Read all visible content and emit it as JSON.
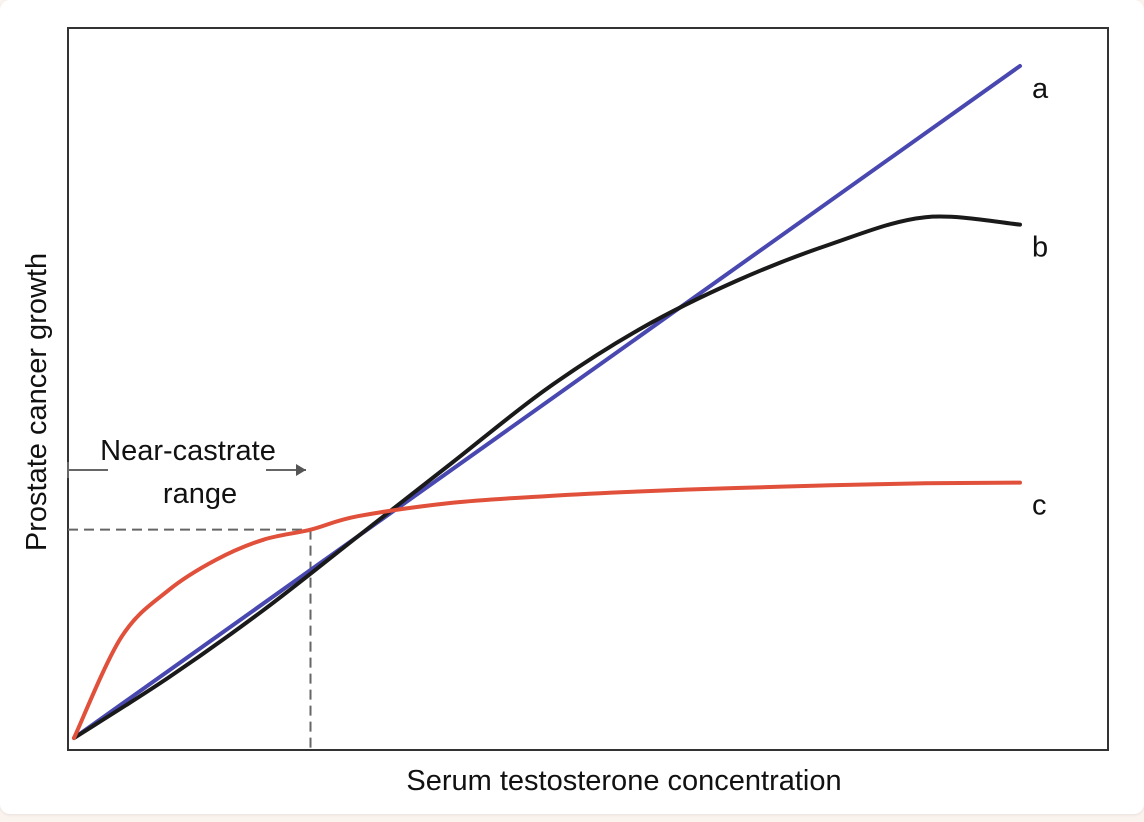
{
  "chart_data": {
    "type": "line",
    "title": "",
    "xlabel": "Serum testosterone concentration",
    "ylabel": "Prostate cancer growth",
    "xlim": [
      0,
      100
    ],
    "ylim": [
      0,
      100
    ],
    "grid": false,
    "legend": "none",
    "colors": {
      "a": "#4848b0",
      "b": "#1a1a1a",
      "c": "#e0503a",
      "axes": "#333333",
      "guide": "#666666"
    },
    "series": [
      {
        "name": "a",
        "label": "a",
        "color": "#4848b0",
        "x": [
          0,
          100
        ],
        "y": [
          0,
          100
        ]
      },
      {
        "name": "b",
        "label": "b",
        "color": "#1a1a1a",
        "x": [
          0,
          10,
          20,
          30,
          40,
          50,
          60,
          70,
          80,
          90,
          100
        ],
        "y": [
          0,
          9,
          19,
          30,
          41,
          52,
          61,
          68,
          73.5,
          77.5,
          76.4
        ]
      },
      {
        "name": "c",
        "label": "c",
        "color": "#e0503a",
        "x": [
          0,
          5,
          10,
          15,
          20,
          25,
          30,
          40,
          50,
          60,
          70,
          80,
          90,
          100
        ],
        "y": [
          0,
          15,
          22,
          26.5,
          29.5,
          31,
          33,
          35,
          36,
          36.7,
          37.2,
          37.6,
          37.9,
          38
        ]
      }
    ],
    "annotations": {
      "near_castrate_line1": "Near-castrate",
      "near_castrate_line2": "range",
      "threshold_x": 25,
      "threshold_y": 31
    }
  }
}
